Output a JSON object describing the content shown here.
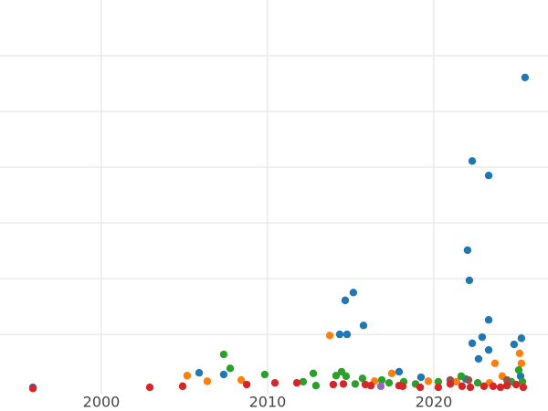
{
  "chart_data": {
    "type": "scatter",
    "xlim": [
      1993.9,
      2026.87
    ],
    "ylim": [
      -0.08,
      7
    ],
    "xticks": [
      2000,
      2010,
      2020
    ],
    "ygrid": [
      1,
      2,
      3,
      4,
      5,
      6
    ],
    "grid": true,
    "series": [
      {
        "color": "#1f77b4",
        "x": [
          2025.49,
          2022.31,
          2023.3,
          2022.03,
          2022.14,
          2014.67,
          2015.16,
          2015.77,
          2023.3,
          2014.34,
          2014.78,
          2022.31,
          2022.91,
          2025.27,
          2024.83,
          2023.3,
          2022.69,
          2017.91,
          2007.36,
          2005.88,
          2019.23,
          1995.88,
          2025.22,
          2021.92
        ],
        "values": [
          5.61,
          4.11,
          3.85,
          2.51,
          1.97,
          1.61,
          1.75,
          1.16,
          1.26,
          1.0,
          1.0,
          0.84,
          0.95,
          0.93,
          0.82,
          0.72,
          0.56,
          0.33,
          0.28,
          0.31,
          0.23,
          0.05,
          0.25,
          0.2
        ]
      },
      {
        "color": "#ff7f0e",
        "x": [
          2013.74,
          2025.16,
          2025.27,
          2023.68,
          2005.16,
          2006.37,
          2008.41,
          2017.47,
          2024.12,
          2019.67,
          2016.43,
          2021.37,
          2023.35
        ],
        "values": [
          0.98,
          0.66,
          0.48,
          0.48,
          0.26,
          0.16,
          0.18,
          0.3,
          0.25,
          0.16,
          0.16,
          0.15,
          0.13
        ]
      },
      {
        "color": "#2ca02c",
        "x": [
          2007.36,
          2007.75,
          2009.83,
          2012.75,
          2014.45,
          2014.12,
          2014.72,
          2012.14,
          2012.91,
          2015.27,
          2015.71,
          2016.87,
          2017.31,
          2018.19,
          2018.9,
          2020.27,
          2021.65,
          2022.64,
          2025.11,
          2024.67,
          2025.33
        ],
        "values": [
          0.64,
          0.39,
          0.28,
          0.3,
          0.33,
          0.26,
          0.25,
          0.15,
          0.08,
          0.11,
          0.21,
          0.18,
          0.13,
          0.15,
          0.11,
          0.15,
          0.25,
          0.13,
          0.36,
          0.15,
          0.15
        ]
      },
      {
        "color": "#8c564b",
        "x": [
          2020.99,
          2022.09,
          2024.4
        ],
        "values": [
          0.18,
          0.18,
          0.18
        ]
      },
      {
        "color": "#9467bd",
        "x": [
          2016.81
        ],
        "values": [
          0.07
        ]
      },
      {
        "color": "#d62728",
        "x": [
          1995.88,
          2002.91,
          2004.89,
          2008.74,
          2010.44,
          2011.76,
          2013.95,
          2014.56,
          2015.88,
          2016.21,
          2017.91,
          2018.13,
          2019.18,
          2020.27,
          2020.99,
          2021.7,
          2022.2,
          2023.02,
          2023.57,
          2024.01,
          2024.4,
          2024.95,
          2025.38
        ],
        "values": [
          0.03,
          0.05,
          0.07,
          0.1,
          0.13,
          0.13,
          0.1,
          0.11,
          0.1,
          0.08,
          0.08,
          0.07,
          0.05,
          0.05,
          0.11,
          0.07,
          0.05,
          0.07,
          0.07,
          0.05,
          0.08,
          0.1,
          0.05
        ]
      }
    ]
  }
}
